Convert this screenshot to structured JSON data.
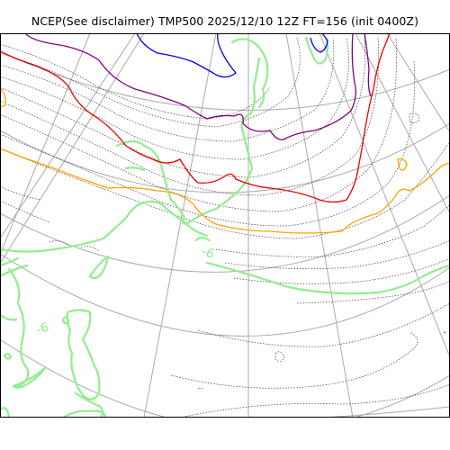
{
  "title": "NCEP(See disclaimer) TMP500 2025/12/10 12Z FT=156 (init 0400Z)",
  "contour_labels": [
    "-6",
    "-6"
  ],
  "colors": {
    "graticule": "#aaaaaa",
    "isotherm": "#444444",
    "coastline": "#90ee90",
    "frame": "#000000",
    "contour_blue": "#0000ee",
    "contour_purple": "#800080",
    "contour_red": "#ee0000",
    "contour_orange": "#ffa500",
    "contour_green": "#90ee90"
  }
}
